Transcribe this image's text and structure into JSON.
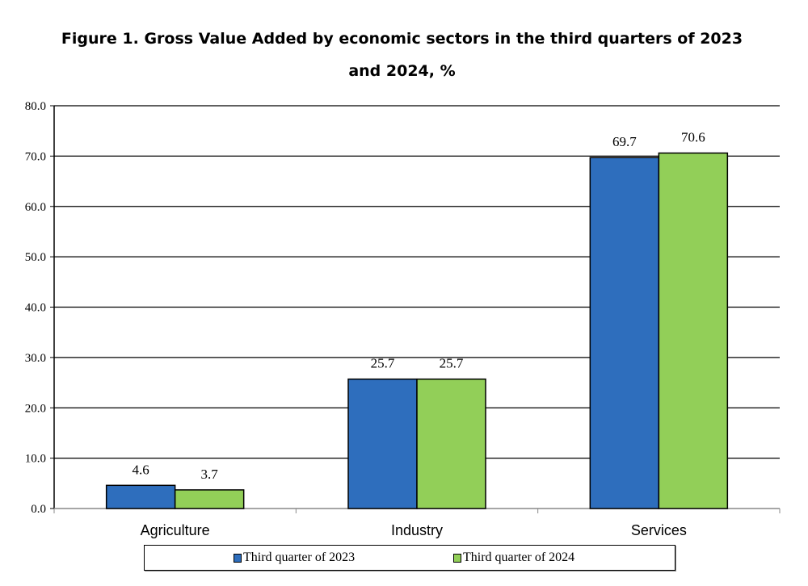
{
  "chart_data": {
    "type": "bar",
    "title": "Figure 1. Gross Value Added by economic sectors in the third quarters of 2023 and 2024, %",
    "title_lines": [
      "Figure 1. Gross Value Added by economic sectors in the third quarters of 2023",
      "and 2024, %"
    ],
    "categories": [
      "Agriculture",
      "Industry",
      "Services"
    ],
    "series": [
      {
        "name": "Third quarter of 2023",
        "values": [
          4.6,
          25.7,
          69.7
        ],
        "color": "#2E6EBD"
      },
      {
        "name": "Third quarter of 2024",
        "values": [
          3.7,
          25.7,
          70.6
        ],
        "color": "#92CF58"
      }
    ],
    "ylim": [
      0,
      80
    ],
    "yticks": [
      "0.0",
      "10.0",
      "20.0",
      "30.0",
      "40.0",
      "50.0",
      "60.0",
      "70.0",
      "80.0"
    ],
    "grid": true,
    "legend": "bottom",
    "xlabel": "",
    "ylabel": ""
  }
}
